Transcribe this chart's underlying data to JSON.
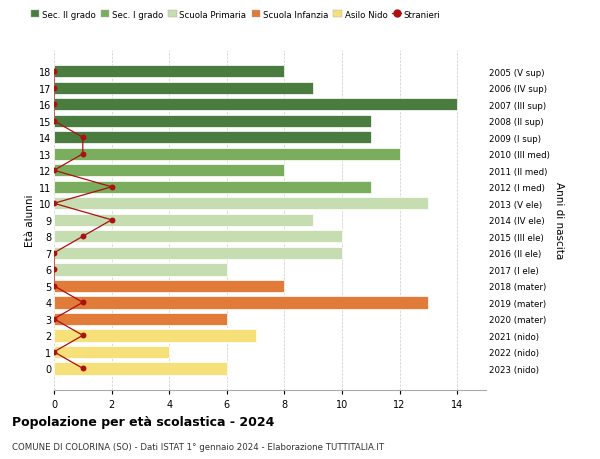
{
  "title": "Popolazione per età scolastica - 2024",
  "subtitle": "COMUNE DI COLORINA (SO) - Dati ISTAT 1° gennaio 2024 - Elaborazione TUTTITALIA.IT",
  "ylabel": "Età alunni",
  "right_ylabel": "Anni di nascita",
  "xlim": [
    0,
    15
  ],
  "xticks": [
    0,
    2,
    4,
    6,
    8,
    10,
    12,
    14
  ],
  "ages": [
    18,
    17,
    16,
    15,
    14,
    13,
    12,
    11,
    10,
    9,
    8,
    7,
    6,
    5,
    4,
    3,
    2,
    1,
    0
  ],
  "right_labels": [
    "2005 (V sup)",
    "2006 (IV sup)",
    "2007 (III sup)",
    "2008 (II sup)",
    "2009 (I sup)",
    "2010 (III med)",
    "2011 (II med)",
    "2012 (I med)",
    "2013 (V ele)",
    "2014 (IV ele)",
    "2015 (III ele)",
    "2016 (II ele)",
    "2017 (I ele)",
    "2018 (mater)",
    "2019 (mater)",
    "2020 (mater)",
    "2021 (nido)",
    "2022 (nido)",
    "2023 (nido)"
  ],
  "bar_values": [
    8,
    9,
    14,
    11,
    11,
    12,
    8,
    11,
    13,
    9,
    10,
    10,
    6,
    8,
    13,
    6,
    7,
    4,
    6
  ],
  "bar_colors": [
    "#4a7c3f",
    "#4a7c3f",
    "#4a7c3f",
    "#4a7c3f",
    "#4a7c3f",
    "#7aad5e",
    "#7aad5e",
    "#7aad5e",
    "#c5ddb0",
    "#c5ddb0",
    "#c5ddb0",
    "#c5ddb0",
    "#c5ddb0",
    "#e07b39",
    "#e07b39",
    "#e07b39",
    "#f5e07a",
    "#f5e07a",
    "#f5e07a"
  ],
  "stranieri_values": [
    0,
    0,
    0,
    0,
    1,
    1,
    0,
    2,
    0,
    2,
    1,
    0,
    0,
    0,
    1,
    0,
    1,
    0,
    1
  ],
  "legend_labels": [
    "Sec. II grado",
    "Sec. I grado",
    "Scuola Primaria",
    "Scuola Infanzia",
    "Asilo Nido",
    "Stranieri"
  ],
  "legend_colors": [
    "#4a7c3f",
    "#7aad5e",
    "#c5ddb0",
    "#e07b39",
    "#f5e07a",
    "#aa1111"
  ],
  "bg_color": "#ffffff",
  "grid_color": "#cccccc",
  "bar_height": 0.75
}
